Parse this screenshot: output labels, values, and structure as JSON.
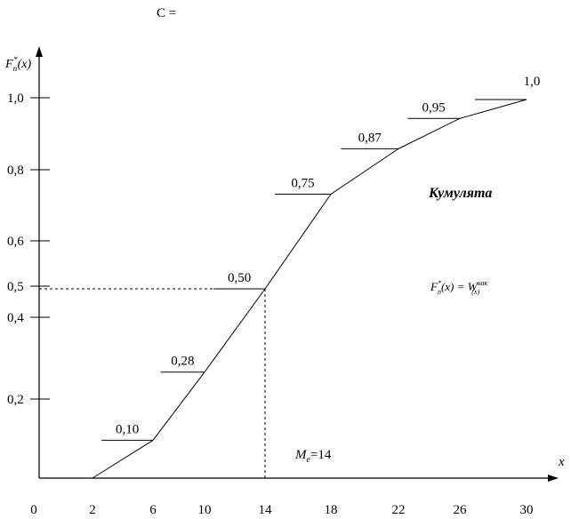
{
  "top_fragment": "C =",
  "chart_data": {
    "type": "line",
    "title": "Кумулята",
    "ylabel": "F",
    "ylabel_sub": "n",
    "ylabel_sup": "*",
    "ylabel_arg": "(x)",
    "xlabel": "x",
    "formula": {
      "lhs": "F",
      "lhs_sub": "n",
      "lhs_sup": "*",
      "lhs_arg": "(x)",
      "eq": "=",
      "rhs": "W",
      "rhs_sup": "нак",
      "rhs_sub": "(x)"
    },
    "median_label": {
      "symbol": "M",
      "sub": "e",
      "value": "=14"
    },
    "x_ticks": [
      "0",
      "2",
      "6",
      "10",
      "14",
      "18",
      "22",
      "26",
      "30"
    ],
    "y_ticks": [
      "0,2",
      "0,4",
      "0,5",
      "0,6",
      "0,8",
      "1,0"
    ],
    "points": [
      {
        "x": 2,
        "y": 0
      },
      {
        "x": 6,
        "y": 0.1
      },
      {
        "x": 10,
        "y": 0.28
      },
      {
        "x": 14,
        "y": 0.5
      },
      {
        "x": 18,
        "y": 0.75
      },
      {
        "x": 22,
        "y": 0.87
      },
      {
        "x": 26,
        "y": 0.95
      },
      {
        "x": 30,
        "y": 1.0
      }
    ],
    "point_labels": [
      "0,10",
      "0,28",
      "0,50",
      "0,75",
      "0,87",
      "0,95",
      "1,0"
    ],
    "median": {
      "x": 14,
      "y": 0.5
    },
    "xlim": [
      0,
      30
    ],
    "ylim": [
      0,
      1.0
    ]
  }
}
